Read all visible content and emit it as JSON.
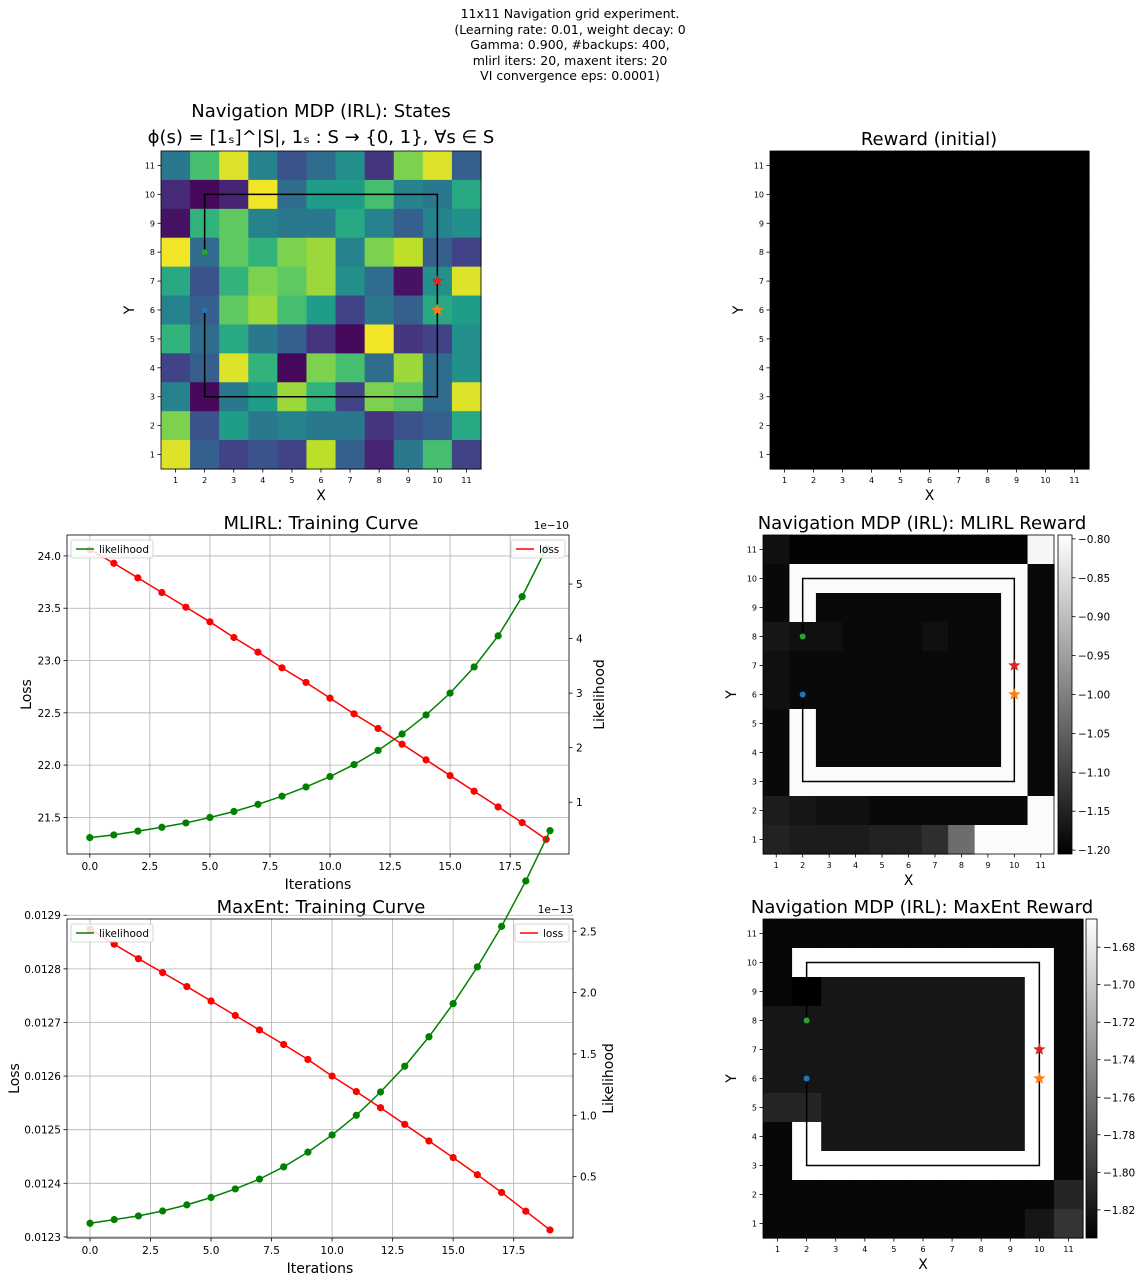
{
  "figure": {
    "suptitle_lines": [
      "11x11 Navigation grid experiment.",
      "(Learning rate: 0.01, weight decay: 0",
      "Gamma: 0.900, #backups: 400,",
      "mlirl iters: 20, maxent iters: 20",
      "VI convergence eps: 0.0001)"
    ]
  },
  "colors": {
    "likelihood": "#008000",
    "loss": "#ff0000",
    "green_marker": "#2ca02c",
    "blue_marker": "#1f77b4",
    "red_star": "#d62728",
    "orange_star": "#ff7f0e",
    "grid": "#b0b0b0"
  },
  "chart_data": [
    {
      "id": "states",
      "type": "heatmap",
      "title_line1": "Navigation MDP (IRL): States",
      "title_line2": "ϕ(s) = [1ₛ]^|S|, 1ₛ : S → {0, 1}, ∀s ∈ S",
      "xlabel": "X",
      "ylabel": "Y",
      "colormap": "viridis",
      "ticks": [
        1,
        2,
        3,
        4,
        5,
        6,
        7,
        8,
        9,
        10,
        11
      ],
      "grid_values_top_row_first": [
        [
          0.4,
          0.7,
          0.95,
          0.45,
          0.25,
          0.35,
          0.5,
          0.15,
          0.8,
          0.95,
          0.3
        ],
        [
          0.12,
          0.02,
          0.1,
          0.98,
          0.35,
          0.55,
          0.55,
          0.7,
          0.45,
          0.4,
          0.6
        ],
        [
          0.05,
          0.65,
          0.75,
          0.45,
          0.4,
          0.4,
          0.6,
          0.45,
          0.3,
          0.45,
          0.5
        ],
        [
          0.98,
          0.35,
          0.75,
          0.65,
          0.8,
          0.85,
          0.45,
          0.8,
          0.9,
          0.3,
          0.2
        ],
        [
          0.6,
          0.25,
          0.65,
          0.8,
          0.75,
          0.85,
          0.5,
          0.35,
          0.05,
          0.5,
          0.95
        ],
        [
          0.45,
          0.3,
          0.75,
          0.85,
          0.7,
          0.55,
          0.2,
          0.4,
          0.3,
          0.6,
          0.55
        ],
        [
          0.65,
          0.35,
          0.6,
          0.4,
          0.3,
          0.15,
          0.02,
          0.98,
          0.15,
          0.2,
          0.5
        ],
        [
          0.2,
          0.3,
          0.95,
          0.65,
          0.02,
          0.8,
          0.7,
          0.35,
          0.85,
          0.35,
          0.5
        ],
        [
          0.45,
          0.02,
          0.4,
          0.55,
          0.85,
          0.65,
          0.2,
          0.8,
          0.75,
          0.35,
          0.95
        ],
        [
          0.8,
          0.25,
          0.55,
          0.4,
          0.45,
          0.4,
          0.4,
          0.15,
          0.25,
          0.3,
          0.6
        ],
        [
          0.95,
          0.3,
          0.2,
          0.25,
          0.2,
          0.9,
          0.3,
          0.1,
          0.4,
          0.7,
          0.2
        ]
      ],
      "path": [
        [
          2,
          8
        ],
        [
          2,
          10
        ],
        [
          10,
          10
        ],
        [
          10,
          3
        ],
        [
          2,
          3
        ],
        [
          2,
          6
        ]
      ],
      "markers": [
        {
          "kind": "dot",
          "x": 2,
          "y": 8,
          "color": "#2ca02c"
        },
        {
          "kind": "dot",
          "x": 2,
          "y": 6,
          "color": "#1f77b4"
        },
        {
          "kind": "star",
          "x": 10,
          "y": 7,
          "color": "#d62728"
        },
        {
          "kind": "star",
          "x": 10,
          "y": 6,
          "color": "#ff7f0e"
        }
      ]
    },
    {
      "id": "reward_initial",
      "type": "heatmap",
      "title": "Reward (initial)",
      "xlabel": "X",
      "ylabel": "Y",
      "colormap": "gray",
      "ticks": [
        1,
        2,
        3,
        4,
        5,
        6,
        7,
        8,
        9,
        10,
        11
      ],
      "uniform_value": 0
    },
    {
      "id": "mlirl_curve",
      "type": "line",
      "title": "MLIRL: Training Curve",
      "xlabel": "Iterations",
      "ylabel": "Loss",
      "ylabel_right": "Likelihood",
      "right_offset_label": "1e−10",
      "legend_left": "likelihood",
      "legend_right": "loss",
      "x": [
        0,
        1,
        2,
        3,
        4,
        5,
        6,
        7,
        8,
        9,
        10,
        11,
        12,
        13,
        14,
        15,
        16,
        17,
        18,
        19
      ],
      "xlim": [
        -0.95,
        19.95
      ],
      "xticks": [
        0.0,
        2.5,
        5.0,
        7.5,
        10.0,
        12.5,
        15.0,
        17.5
      ],
      "xtick_labels": [
        "0.0",
        "2.5",
        "5.0",
        "7.5",
        "10.0",
        "12.5",
        "15.0",
        "17.5"
      ],
      "loss": [
        24.06,
        23.93,
        23.79,
        23.65,
        23.51,
        23.37,
        23.22,
        23.08,
        22.93,
        22.79,
        22.64,
        22.49,
        22.35,
        22.2,
        22.05,
        21.9,
        21.75,
        21.6,
        21.45,
        21.29
      ],
      "ylim": [
        21.15,
        24.2
      ],
      "yticks": [
        21.5,
        22.0,
        22.5,
        23.0,
        23.5,
        24.0
      ],
      "ytick_labels": [
        "21.5",
        "22.0",
        "22.5",
        "23.0",
        "23.5",
        "24.0"
      ],
      "likelihood": [
        0.35,
        0.4,
        0.47,
        0.54,
        0.62,
        0.72,
        0.83,
        0.96,
        1.11,
        1.28,
        1.47,
        1.69,
        1.95,
        2.25,
        2.6,
        3.0,
        3.48,
        4.05,
        4.77,
        5.65
      ],
      "ylim_right": [
        0.05,
        5.9
      ],
      "yticks_right": [
        1,
        2,
        3,
        4,
        5
      ],
      "ytick_labels_right": [
        "1",
        "2",
        "3",
        "4",
        "5"
      ]
    },
    {
      "id": "mlirl_reward",
      "type": "heatmap",
      "title": "Navigation MDP (IRL): MLIRL Reward",
      "xlabel": "X",
      "ylabel": "Y",
      "colormap": "gray",
      "ticks": [
        1,
        2,
        3,
        4,
        5,
        6,
        7,
        8,
        9,
        10,
        11
      ],
      "vmin": -1.205,
      "vmax": -0.795,
      "colorbar_ticks": [
        -0.8,
        -0.85,
        -0.9,
        -0.95,
        -1.0,
        -1.05,
        -1.1,
        -1.15,
        -1.2
      ],
      "colorbar_labels": [
        "−0.80",
        "−0.85",
        "−0.90",
        "−0.95",
        "−1.00",
        "−1.05",
        "−1.10",
        "−1.15",
        "−1.20"
      ],
      "grid_values_top_row_first": [
        [
          -1.18,
          -1.2,
          -1.2,
          -1.2,
          -1.2,
          -1.2,
          -1.2,
          -1.2,
          -1.2,
          -1.2,
          -0.81
        ],
        [
          -1.19,
          -0.8,
          -0.8,
          -0.8,
          -0.8,
          -0.8,
          -0.8,
          -0.8,
          -0.8,
          -0.8,
          -1.19
        ],
        [
          -1.19,
          -0.8,
          -1.19,
          -1.19,
          -1.19,
          -1.19,
          -1.19,
          -1.19,
          -1.19,
          -0.8,
          -1.19
        ],
        [
          -1.17,
          -1.18,
          -1.18,
          -1.19,
          -1.19,
          -1.19,
          -1.18,
          -1.19,
          -1.19,
          -0.8,
          -1.19
        ],
        [
          -1.18,
          -1.19,
          -1.19,
          -1.19,
          -1.19,
          -1.19,
          -1.19,
          -1.19,
          -1.19,
          -0.8,
          -1.19
        ],
        [
          -1.18,
          -1.19,
          -1.19,
          -1.19,
          -1.19,
          -1.19,
          -1.19,
          -1.19,
          -1.19,
          -0.8,
          -1.19
        ],
        [
          -1.19,
          -0.8,
          -1.19,
          -1.19,
          -1.19,
          -1.19,
          -1.19,
          -1.19,
          -1.19,
          -0.8,
          -1.19
        ],
        [
          -1.19,
          -0.8,
          -1.19,
          -1.19,
          -1.19,
          -1.19,
          -1.19,
          -1.19,
          -1.19,
          -0.8,
          -1.19
        ],
        [
          -1.19,
          -0.8,
          -0.8,
          -0.8,
          -0.8,
          -0.8,
          -0.8,
          -0.8,
          -0.8,
          -0.8,
          -1.19
        ],
        [
          -1.16,
          -1.17,
          -1.18,
          -1.18,
          -1.19,
          -1.19,
          -1.19,
          -1.19,
          -1.19,
          -1.19,
          -0.8
        ],
        [
          -1.15,
          -1.16,
          -1.16,
          -1.16,
          -1.15,
          -1.15,
          -1.13,
          -1.03,
          -0.8,
          -0.8,
          -0.8
        ]
      ],
      "path": [
        [
          2,
          8
        ],
        [
          2,
          10
        ],
        [
          10,
          10
        ],
        [
          10,
          3
        ],
        [
          2,
          3
        ],
        [
          2,
          6
        ]
      ],
      "markers": [
        {
          "kind": "dot",
          "x": 2,
          "y": 8,
          "color": "#2ca02c"
        },
        {
          "kind": "dot",
          "x": 2,
          "y": 6,
          "color": "#1f77b4"
        },
        {
          "kind": "star",
          "x": 10,
          "y": 7,
          "color": "#d62728"
        },
        {
          "kind": "star",
          "x": 10,
          "y": 6,
          "color": "#ff7f0e"
        }
      ]
    },
    {
      "id": "maxent_curve",
      "type": "line",
      "title": "MaxEnt: Training Curve",
      "xlabel": "Iterations",
      "ylabel": "Loss",
      "ylabel_right": "Likelihood",
      "right_offset_label": "1e−13",
      "legend_left": "likelihood",
      "legend_right": "loss",
      "x": [
        0,
        1,
        2,
        3,
        4,
        5,
        6,
        7,
        8,
        9,
        10,
        11,
        12,
        13,
        14,
        15,
        16,
        17,
        18,
        19
      ],
      "xlim": [
        -0.95,
        19.95
      ],
      "xticks": [
        0.0,
        2.5,
        5.0,
        7.5,
        10.0,
        12.5,
        15.0,
        17.5
      ],
      "xtick_labels": [
        "0.0",
        "2.5",
        "5.0",
        "7.5",
        "10.0",
        "12.5",
        "15.0",
        "17.5"
      ],
      "loss": [
        0.012874,
        0.012846,
        0.012819,
        0.012793,
        0.012767,
        0.01274,
        0.012713,
        0.012686,
        0.012659,
        0.012631,
        0.0126,
        0.012571,
        0.012541,
        0.01251,
        0.012479,
        0.012448,
        0.012416,
        0.012383,
        0.012348,
        0.012313
      ],
      "ylim": [
        0.012298,
        0.012893
      ],
      "yticks": [
        0.0123,
        0.0124,
        0.0125,
        0.0126,
        0.0127,
        0.0128,
        0.0129
      ],
      "ytick_labels": [
        "0.0123",
        "0.0124",
        "0.0125",
        "0.0126",
        "0.0127",
        "0.0128",
        "0.0129"
      ],
      "likelihood": [
        0.12,
        0.15,
        0.18,
        0.22,
        0.27,
        0.33,
        0.4,
        0.48,
        0.58,
        0.7,
        0.84,
        1.0,
        1.19,
        1.4,
        1.64,
        1.91,
        2.21,
        2.54,
        2.91,
        3.32
      ],
      "likelihood_note": "",
      "ylim_right": [
        0.0,
        2.6
      ],
      "yticks_right": [
        0.5,
        1.0,
        1.5,
        2.0,
        2.5
      ],
      "ytick_labels_right": [
        "0.5",
        "1.0",
        "1.5",
        "2.0",
        "2.5"
      ]
    },
    {
      "id": "maxent_reward",
      "type": "heatmap",
      "title": "Navigation MDP (IRL): MaxEnt Reward",
      "xlabel": "X",
      "ylabel": "Y",
      "colormap": "gray",
      "ticks": [
        1,
        2,
        3,
        4,
        5,
        6,
        7,
        8,
        9,
        10,
        11
      ],
      "vmin": -1.835,
      "vmax": -1.665,
      "colorbar_ticks": [
        -1.68,
        -1.7,
        -1.72,
        -1.74,
        -1.76,
        -1.78,
        -1.8,
        -1.82
      ],
      "colorbar_labels": [
        "−1.68",
        "−1.70",
        "−1.72",
        "−1.74",
        "−1.76",
        "−1.78",
        "−1.80",
        "−1.82"
      ],
      "grid_values_top_row_first": [
        [
          -1.83,
          -1.83,
          -1.83,
          -1.83,
          -1.83,
          -1.83,
          -1.83,
          -1.83,
          -1.83,
          -1.83,
          -1.83
        ],
        [
          -1.83,
          -1.665,
          -1.665,
          -1.665,
          -1.665,
          -1.665,
          -1.665,
          -1.665,
          -1.665,
          -1.665,
          -1.83
        ],
        [
          -1.83,
          -1.835,
          -1.82,
          -1.82,
          -1.82,
          -1.82,
          -1.82,
          -1.82,
          -1.82,
          -1.665,
          -1.83
        ],
        [
          -1.82,
          -1.82,
          -1.82,
          -1.82,
          -1.82,
          -1.82,
          -1.82,
          -1.82,
          -1.82,
          -1.665,
          -1.83
        ],
        [
          -1.82,
          -1.82,
          -1.82,
          -1.82,
          -1.82,
          -1.82,
          -1.82,
          -1.82,
          -1.82,
          -1.665,
          -1.83
        ],
        [
          -1.82,
          -1.82,
          -1.82,
          -1.82,
          -1.82,
          -1.82,
          -1.82,
          -1.82,
          -1.82,
          -1.665,
          -1.83
        ],
        [
          -1.81,
          -1.81,
          -1.82,
          -1.82,
          -1.82,
          -1.82,
          -1.82,
          -1.82,
          -1.82,
          -1.665,
          -1.83
        ],
        [
          -1.83,
          -1.665,
          -1.82,
          -1.82,
          -1.82,
          -1.82,
          -1.82,
          -1.82,
          -1.82,
          -1.665,
          -1.83
        ],
        [
          -1.83,
          -1.665,
          -1.665,
          -1.665,
          -1.665,
          -1.665,
          -1.665,
          -1.665,
          -1.665,
          -1.665,
          -1.83
        ],
        [
          -1.83,
          -1.83,
          -1.83,
          -1.83,
          -1.83,
          -1.83,
          -1.83,
          -1.83,
          -1.83,
          -1.83,
          -1.81
        ],
        [
          -1.83,
          -1.83,
          -1.83,
          -1.83,
          -1.83,
          -1.83,
          -1.83,
          -1.83,
          -1.83,
          -1.82,
          -1.8
        ]
      ],
      "path": [
        [
          2,
          8
        ],
        [
          2,
          10
        ],
        [
          10,
          10
        ],
        [
          10,
          3
        ],
        [
          2,
          3
        ],
        [
          2,
          6
        ]
      ],
      "markers": [
        {
          "kind": "dot",
          "x": 2,
          "y": 8,
          "color": "#2ca02c"
        },
        {
          "kind": "dot",
          "x": 2,
          "y": 6,
          "color": "#1f77b4"
        },
        {
          "kind": "star",
          "x": 10,
          "y": 7,
          "color": "#d62728"
        },
        {
          "kind": "star",
          "x": 10,
          "y": 6,
          "color": "#ff7f0e"
        }
      ]
    }
  ]
}
